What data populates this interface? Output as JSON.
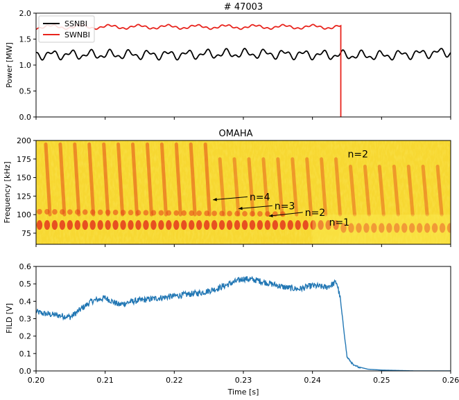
{
  "chart_data": [
    {
      "type": "line",
      "title": "# 47003",
      "xlabel": "",
      "ylabel": "Power [MW]",
      "xlim": [
        0.2,
        0.26
      ],
      "ylim": [
        0,
        2.0
      ],
      "yticks": [
        "0.0",
        "0.5",
        "1.0",
        "1.5",
        "2.0"
      ],
      "legend": {
        "placement": "top-left"
      },
      "colors": {
        "SSNBI": "#000000",
        "SWNBI": "#e8231c"
      },
      "series": [
        {
          "name": "SSNBI",
          "mean": 1.2,
          "ripple": 0.07,
          "x_end": 0.26,
          "x": [
            0.2,
            0.21,
            0.22,
            0.23,
            0.24,
            0.25,
            0.26
          ],
          "y": [
            1.2,
            1.2,
            1.2,
            1.22,
            1.2,
            1.18,
            1.25
          ]
        },
        {
          "name": "SWNBI",
          "mean": 1.72,
          "ripple": 0.04,
          "x_end": 0.2441,
          "drop_to": 0.0,
          "x": [
            0.2,
            0.21,
            0.22,
            0.23,
            0.24,
            0.244,
            0.2441
          ],
          "y": [
            1.75,
            1.74,
            1.72,
            1.73,
            1.76,
            1.73,
            0.0
          ]
        }
      ]
    },
    {
      "type": "heatmap",
      "title": "OMAHA",
      "xlabel": "",
      "ylabel": "Frequency [kHz]",
      "xlim": [
        0.2,
        0.26
      ],
      "ylim": [
        60,
        200
      ],
      "yticks": [
        "75",
        "100",
        "125",
        "150",
        "175",
        "200"
      ],
      "annotations": [
        {
          "text": "n=2",
          "x": 0.2451,
          "y": 182
        },
        {
          "text": "n=4",
          "x": 0.2309,
          "y": 124,
          "arrow_to": [
            0.2256,
            120
          ]
        },
        {
          "text": "n=3",
          "x": 0.2345,
          "y": 112,
          "arrow_to": [
            0.2293,
            108
          ]
        },
        {
          "text": "n=2",
          "x": 0.2389,
          "y": 103,
          "arrow_to": [
            0.2337,
            98
          ]
        },
        {
          "text": "n=1",
          "x": 0.2424,
          "y": 90
        }
      ]
    },
    {
      "type": "line",
      "title": "",
      "xlabel": "Time [s]",
      "ylabel": "FILD [V]",
      "xlim": [
        0.2,
        0.26
      ],
      "ylim": [
        0.0,
        0.6
      ],
      "yticks": [
        "0.0",
        "0.1",
        "0.2",
        "0.3",
        "0.4",
        "0.5",
        "0.6"
      ],
      "xticks": [
        "0.20",
        "0.21",
        "0.22",
        "0.23",
        "0.24",
        "0.25",
        "0.26"
      ],
      "colors": {
        "FILD": "#2277b4"
      },
      "series": [
        {
          "name": "",
          "x": [
            0.2,
            0.201,
            0.203,
            0.205,
            0.206,
            0.208,
            0.21,
            0.212,
            0.214,
            0.216,
            0.218,
            0.22,
            0.222,
            0.224,
            0.226,
            0.228,
            0.23,
            0.232,
            0.234,
            0.236,
            0.238,
            0.24,
            0.242,
            0.2435,
            0.244,
            0.2445,
            0.245,
            0.246,
            0.248,
            0.25,
            0.255,
            0.26
          ],
          "y": [
            0.34,
            0.33,
            0.32,
            0.31,
            0.34,
            0.4,
            0.42,
            0.38,
            0.4,
            0.41,
            0.42,
            0.43,
            0.44,
            0.45,
            0.47,
            0.5,
            0.53,
            0.52,
            0.5,
            0.48,
            0.47,
            0.49,
            0.48,
            0.51,
            0.42,
            0.25,
            0.08,
            0.03,
            0.01,
            0.005,
            0.0,
            0.0
          ]
        }
      ]
    }
  ]
}
